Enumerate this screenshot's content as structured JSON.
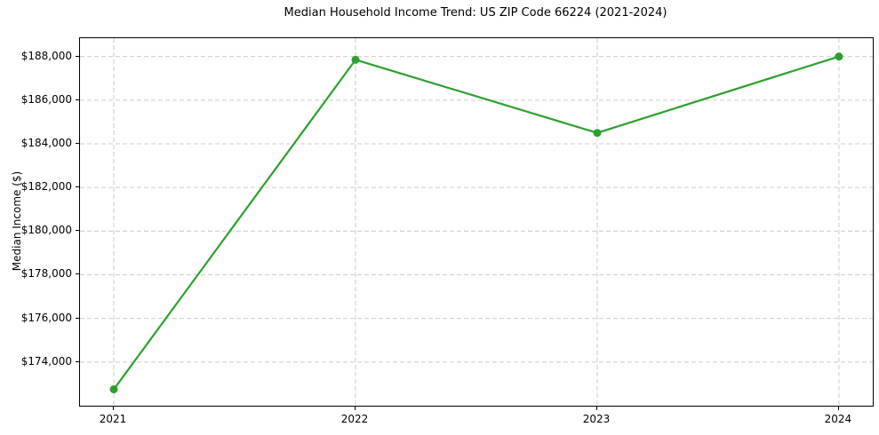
{
  "chart_data": {
    "type": "line",
    "title": "Median Household Income Trend: US ZIP Code 66224 (2021-2024)",
    "xlabel": "",
    "ylabel": "Median Income ($)",
    "x": [
      2021,
      2022,
      2023,
      2024
    ],
    "x_tick_labels": [
      "2021",
      "2022",
      "2023",
      "2024"
    ],
    "series": [
      {
        "name": "Median Household Income",
        "values": [
          172750,
          187850,
          184500,
          188000
        ]
      }
    ],
    "xlim": [
      2020.86,
      2024.14
    ],
    "ylim": [
      172000,
      188840
    ],
    "yticks": {
      "values": [
        174000,
        176000,
        178000,
        180000,
        182000,
        184000,
        186000,
        188000
      ],
      "labels": [
        "$174,000",
        "$176,000",
        "$178,000",
        "$180,000",
        "$182,000",
        "$184,000",
        "$186,000",
        "$188,000"
      ]
    },
    "grid": true,
    "legend": "none",
    "colors": {
      "line": "#2ca02c",
      "marker": "#2ca02c",
      "grid": "#cccccc",
      "axis_frame": "#000000",
      "text": "#000000",
      "background": "#ffffff"
    },
    "style": {
      "line_width": 2.2,
      "marker_radius": 4.5,
      "grid_dash": "5 3",
      "tick_length": 4
    }
  }
}
